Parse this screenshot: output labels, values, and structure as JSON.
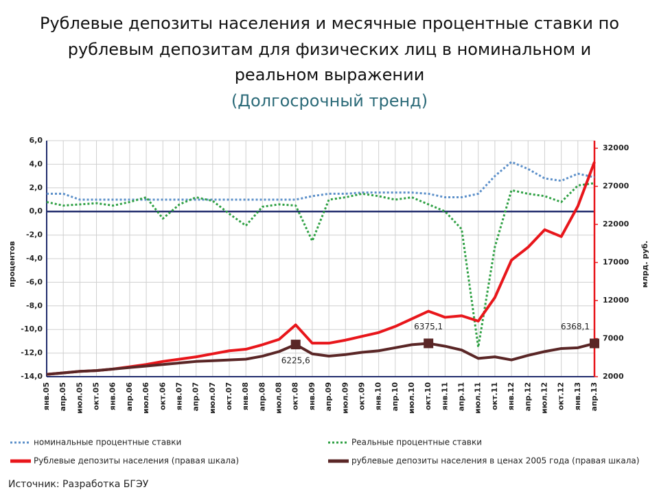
{
  "chart_data": {
    "type": "line",
    "title": [
      "Рублевые депозиты населения и месячные процентные ставки по",
      "рублевым депозитам для физических лиц в номинальном и",
      "реальном выражении"
    ],
    "subtitle": "(Долгосрочный тренд)",
    "y_label": "процентов",
    "y2_label": "млрд. руб.",
    "source": "Источник: Разработка БГЭУ",
    "legend": "bottom",
    "grid": true,
    "categories": [
      "янв.05",
      "апр.05",
      "июл.05",
      "окт.05",
      "янв.06",
      "апр.06",
      "июл.06",
      "окт.06",
      "янв.07",
      "апр.07",
      "июл.07",
      "окт.07",
      "янв.08",
      "апр.08",
      "июл.08",
      "окт.08",
      "янв.09",
      "апр.09",
      "июл.09",
      "окт.09",
      "янв.10",
      "апр.10",
      "июл.10",
      "окт.10",
      "янв.11",
      "апр.11",
      "июл.11",
      "окт.11",
      "янв.12",
      "апр.12",
      "июл.12",
      "окт.12",
      "янв.13",
      "апр.13"
    ],
    "ylim": [
      -14,
      6
    ],
    "yticks": [
      {
        "value": -14,
        "label": "-14,0"
      },
      {
        "value": -12,
        "label": "-12,0"
      },
      {
        "value": -10,
        "label": "-10,0"
      },
      {
        "value": -8,
        "label": "-8,0"
      },
      {
        "value": -6,
        "label": "-6,0"
      },
      {
        "value": -4,
        "label": "-4,0"
      },
      {
        "value": -2,
        "label": "-2,0"
      },
      {
        "value": 0,
        "label": "0,0"
      },
      {
        "value": 2,
        "label": "2,0"
      },
      {
        "value": 4,
        "label": "4,0"
      },
      {
        "value": 6,
        "label": "6,0"
      }
    ],
    "y2lim": [
      2000,
      33000
    ],
    "y2ticks": [
      2000,
      7000,
      12000,
      17000,
      22000,
      27000,
      32000
    ],
    "series": [
      {
        "name": "номинальные процентные ставки",
        "color": "#5b8fc9",
        "style": "dotted",
        "axis": "y",
        "values": [
          1.5,
          1.5,
          1.0,
          1.0,
          1.0,
          1.0,
          1.0,
          1.0,
          1.0,
          1.0,
          1.0,
          1.0,
          1.0,
          1.0,
          1.0,
          1.0,
          1.3,
          1.5,
          1.5,
          1.6,
          1.6,
          1.6,
          1.6,
          1.5,
          1.2,
          1.2,
          1.5,
          3.0,
          4.2,
          3.6,
          2.8,
          2.6,
          3.2,
          2.9
        ]
      },
      {
        "name": "Реальные процентные ставки",
        "color": "#2ea043",
        "style": "dotted",
        "axis": "y",
        "values": [
          0.8,
          0.5,
          0.6,
          0.7,
          0.5,
          0.8,
          1.2,
          -0.6,
          0.6,
          1.2,
          0.9,
          -0.2,
          -1.2,
          0.4,
          0.6,
          0.5,
          -2.5,
          1.0,
          1.2,
          1.5,
          1.3,
          1.0,
          1.2,
          0.6,
          0.0,
          -1.5,
          -11.5,
          -3.0,
          1.8,
          1.5,
          1.3,
          0.8,
          2.2,
          2.4
        ]
      },
      {
        "name": "Рублевые депозиты населения (правая шкала)",
        "color": "#e8161b",
        "style": "solid",
        "axis": "y2",
        "values": [
          2300,
          2500,
          2700,
          2800,
          3000,
          3300,
          3600,
          4000,
          4300,
          4600,
          5000,
          5400,
          5600,
          6200,
          6900,
          8800,
          6400,
          6400,
          6800,
          7300,
          7800,
          8600,
          9600,
          10600,
          9800,
          10000,
          9300,
          12400,
          17300,
          19000,
          21300,
          20400,
          24400,
          30200
        ]
      },
      {
        "name": "рублевые депозиты населения в ценах 2005 года (правая шкала)",
        "color": "#5a2626",
        "style": "solid",
        "axis": "y2",
        "values": [
          2300,
          2500,
          2700,
          2800,
          3000,
          3200,
          3400,
          3600,
          3800,
          4000,
          4100,
          4200,
          4300,
          4700,
          5300,
          6225.6,
          5000,
          4700,
          4900,
          5200,
          5400,
          5800,
          6200,
          6375.1,
          6000,
          5500,
          4400,
          4600,
          4200,
          4800,
          5300,
          5700,
          5800,
          6368.1
        ],
        "value_labels": [
          null,
          null,
          null,
          null,
          null,
          null,
          null,
          null,
          null,
          null,
          null,
          null,
          null,
          null,
          null,
          "6225,6",
          null,
          null,
          null,
          null,
          null,
          null,
          null,
          "6375,1",
          null,
          null,
          null,
          null,
          null,
          null,
          null,
          null,
          null,
          "6368,1"
        ]
      }
    ]
  }
}
